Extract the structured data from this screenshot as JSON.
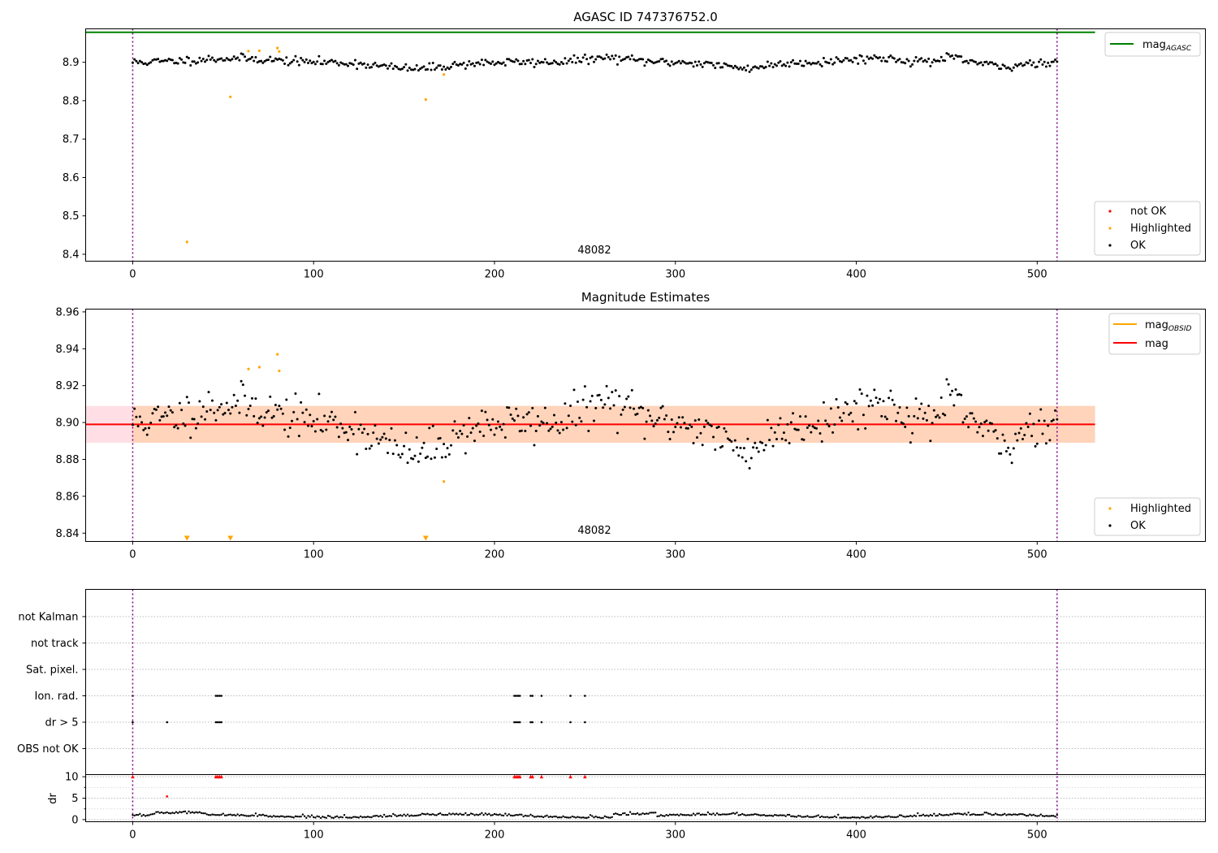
{
  "title": "AGASC ID 747376752.0",
  "chart_data": [
    {
      "type": "scatter",
      "title": "AGASC ID 747376752.0",
      "obsid_label": "48082",
      "xlim": [
        -26,
        593
      ],
      "ylim": [
        8.382,
        8.987
      ],
      "xticks": [
        0,
        100,
        200,
        300,
        400,
        500
      ],
      "yticks": [
        8.4,
        8.5,
        8.6,
        8.7,
        8.8,
        8.9
      ],
      "xtick_labels": [
        "0",
        "100",
        "200",
        "300",
        "400",
        "500"
      ],
      "ytick_labels": [
        "8.4",
        "8.5",
        "8.6",
        "8.7",
        "8.8",
        "8.9"
      ],
      "obsid_bounds": [
        0,
        511
      ],
      "mag_agasc": 8.978,
      "legend_top": {
        "placement": "top-right",
        "entries": [
          "mag_AGASC"
        ]
      },
      "legend_bottom": {
        "placement": "bottom-right",
        "entries": [
          "not OK",
          "Highlighted",
          "OK"
        ]
      },
      "series": [
        {
          "name": "Highlighted",
          "color": "#ffa500",
          "points": [
            [
              30,
              8.432
            ],
            [
              54,
              8.81
            ],
            [
              64,
              8.929
            ],
            [
              70,
              8.93
            ],
            [
              80,
              8.937
            ],
            [
              81,
              8.928
            ],
            [
              162,
              8.803
            ],
            [
              172,
              8.868
            ]
          ]
        }
      ],
      "ok_model": {
        "n": 512,
        "seed": 11
      }
    },
    {
      "type": "scatter",
      "title": "Magnitude Estimates",
      "obsid_label": "48082",
      "xlim": [
        -26,
        593
      ],
      "ylim": [
        8.8355,
        8.9615
      ],
      "xticks": [
        0,
        100,
        200,
        300,
        400,
        500
      ],
      "yticks": [
        8.84,
        8.86,
        8.88,
        8.9,
        8.92,
        8.94,
        8.96
      ],
      "xtick_labels": [
        "0",
        "100",
        "200",
        "300",
        "400",
        "500"
      ],
      "ytick_labels": [
        "8.84",
        "8.86",
        "8.88",
        "8.90",
        "8.92",
        "8.94",
        "8.96"
      ],
      "obsid_bounds": [
        0,
        511
      ],
      "mag": 8.899,
      "mag_band": [
        8.889,
        8.909
      ],
      "mag_obsid": 8.899,
      "mag_obsid_band": [
        8.889,
        8.909
      ],
      "legend_top": {
        "placement": "top-right",
        "entries": [
          "mag_OBSID",
          "mag"
        ]
      },
      "legend_bottom": {
        "placement": "bottom-right",
        "entries": [
          "Highlighted",
          "OK"
        ]
      },
      "series": [
        {
          "name": "Highlighted",
          "color": "#ffa500",
          "points": [
            [
              64,
              8.929
            ],
            [
              70,
              8.93
            ],
            [
              80,
              8.937
            ],
            [
              81,
              8.928
            ],
            [
              172,
              8.868
            ]
          ]
        }
      ],
      "out_of_range_markers": [
        30,
        54,
        162
      ]
    },
    {
      "type": "scatter",
      "title": "",
      "xlim": [
        -26,
        593
      ],
      "xticks": [
        0,
        100,
        200,
        300,
        400,
        500
      ],
      "xtick_labels": [
        "0",
        "100",
        "200",
        "300",
        "400",
        "500"
      ],
      "obsid_bounds": [
        0,
        511
      ],
      "flag_rows": [
        "not Kalman",
        "not track",
        "Sat. pixel.",
        "Ion. rad.",
        "dr > 5",
        "OBS not OK"
      ],
      "flags": {
        "Ion. rad.": [
          0,
          46,
          47,
          48,
          49,
          211,
          212,
          213,
          214,
          220,
          221,
          226,
          242,
          250
        ],
        "dr > 5": [
          0,
          19,
          46,
          47,
          48,
          49,
          211,
          212,
          213,
          214,
          220,
          221,
          226,
          242,
          250
        ]
      },
      "dr": {
        "ylabel": "dr",
        "ylim": [
          -0.5,
          10.5
        ],
        "yticks": [
          0,
          5,
          10
        ],
        "ytick_labels": [
          "0",
          "5",
          "10"
        ],
        "clipped_at_10": [
          0,
          46,
          47,
          48,
          49,
          211,
          212,
          213,
          214,
          220,
          221,
          226,
          242,
          250
        ],
        "outliers": [
          [
            19,
            5.4
          ]
        ]
      }
    }
  ],
  "legend_labels": {
    "mag_agasc_base": "mag",
    "mag_agasc_sub": "AGASC",
    "mag_obsid_base": "mag",
    "mag_obsid_sub": "OBSID",
    "mag": "mag",
    "not_ok": "not OK",
    "highlighted": "Highlighted",
    "ok": "OK"
  },
  "colors": {
    "ok": "#000000",
    "highlighted": "#ffa500",
    "not_ok": "#ff0000",
    "agasc": "#008000",
    "mag": "#ff0000",
    "mag_obsid": "#ffa500",
    "obsid_bounds": "#800080"
  }
}
